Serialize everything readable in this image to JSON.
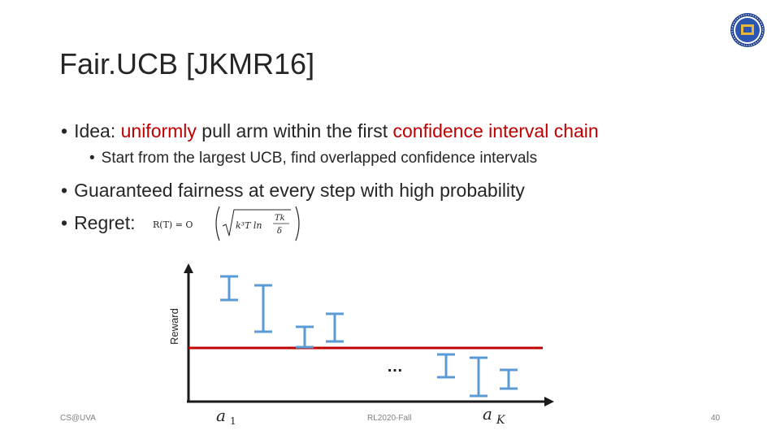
{
  "slide": {
    "title": "Fair.UCB [JKMR16]",
    "bullets": {
      "idea_prefix": "Idea: ",
      "idea_red1": "uniformly",
      "idea_mid": " pull arm within the first ",
      "idea_red2": "confidence interval chain",
      "sub1": "Start from the largest UCB, find overlapped confidence intervals",
      "guaranteed": "Guaranteed fairness at every step with high probability",
      "regret_label": "Regret:"
    },
    "formula": {
      "lhs": "R(T) = O",
      "radicand": "k³T ln",
      "frac_num": "Tk",
      "frac_den": "δ"
    },
    "diagram": {
      "ylabel": "Reward",
      "ellipsis": "…",
      "arm_first_label": "a",
      "arm_first_sub": "1",
      "arm_last_label": "a",
      "arm_last_sub": "K"
    },
    "footer": {
      "left": "CS@UVA",
      "center": "RL2020-Fall",
      "page": "40"
    },
    "colors": {
      "accent_red": "#c00000",
      "interval_blue": "#5b9bd5",
      "threshold_red": "#c00000",
      "text": "#262626"
    }
  }
}
